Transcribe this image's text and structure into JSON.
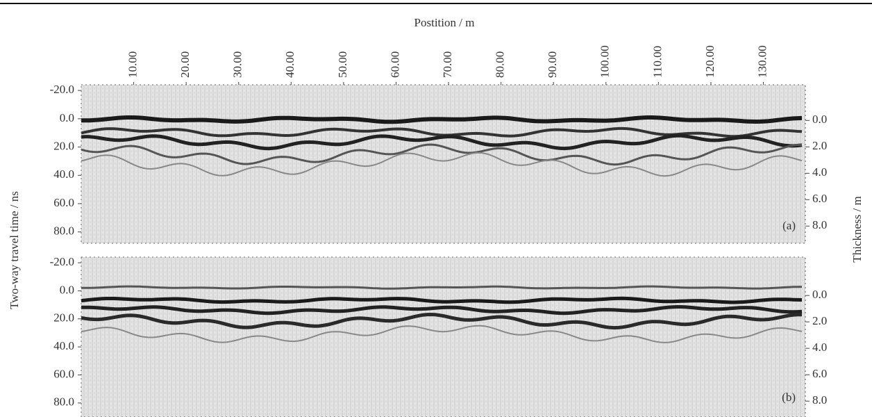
{
  "chart_data": [
    {
      "type": "radargram",
      "xlabel": "Postition / m",
      "ylabel": "Two-way travel time / ns",
      "y2label": "Thickness / m",
      "panel_label": "(a)",
      "xlim": [
        0,
        138
      ],
      "xticks": [
        {
          "value": 10,
          "label": "10.00"
        },
        {
          "value": 20,
          "label": "20.00"
        },
        {
          "value": 30,
          "label": "30.00"
        },
        {
          "value": 40,
          "label": "40.00"
        },
        {
          "value": 50,
          "label": "50.00"
        },
        {
          "value": 60,
          "label": "60.00"
        },
        {
          "value": 70,
          "label": "70.00"
        },
        {
          "value": 80,
          "label": "80.00"
        },
        {
          "value": 90,
          "label": "90.00"
        },
        {
          "value": 100,
          "label": "100.00"
        },
        {
          "value": 110,
          "label": "110.00"
        },
        {
          "value": 120,
          "label": "120.00"
        },
        {
          "value": 130,
          "label": "130.00"
        }
      ],
      "ylim": [
        -24,
        88
      ],
      "yticks": [
        {
          "value": -20,
          "label": "-20.0"
        },
        {
          "value": 0,
          "label": "0.0"
        },
        {
          "value": 20,
          "label": "20.0"
        },
        {
          "value": 40,
          "label": "40.0"
        },
        {
          "value": 60,
          "label": "60.0"
        },
        {
          "value": 80,
          "label": "80.0"
        }
      ],
      "y2lim": [
        -2.7,
        9.3
      ],
      "y2ticks": [
        {
          "value": 0,
          "label": "0.0"
        },
        {
          "value": 2,
          "label": "2.0"
        },
        {
          "value": 4,
          "label": "4.0"
        },
        {
          "value": 6,
          "label": "6.0"
        },
        {
          "value": 8,
          "label": "8.0"
        }
      ]
    },
    {
      "type": "radargram",
      "panel_label": "(b)",
      "xlim": [
        0,
        138
      ],
      "ylim": [
        -24,
        90
      ],
      "yticks": [
        {
          "value": -20,
          "label": "-20.0"
        },
        {
          "value": 0,
          "label": "0.0"
        },
        {
          "value": 20,
          "label": "20.0"
        },
        {
          "value": 40,
          "label": "40.0"
        },
        {
          "value": 60,
          "label": "60.0"
        },
        {
          "value": 80,
          "label": "80.0"
        }
      ],
      "y2lim": [
        -2.9,
        9.2
      ],
      "y2ticks": [
        {
          "value": 0,
          "label": "0.0"
        },
        {
          "value": 2,
          "label": "2.0"
        },
        {
          "value": 4,
          "label": "4.0"
        },
        {
          "value": 6,
          "label": "6.0"
        },
        {
          "value": 8,
          "label": "8.0"
        }
      ]
    }
  ]
}
